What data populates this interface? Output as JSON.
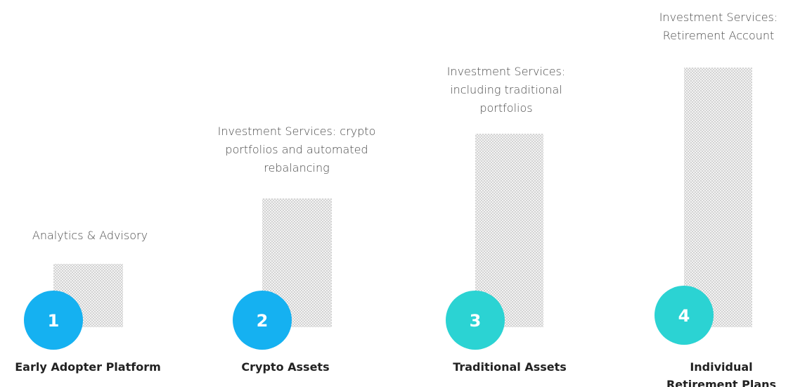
{
  "steps": [
    {
      "number": "1",
      "description": [
        "Analytics & Advisory"
      ],
      "label": [
        "Early Adopter Platform"
      ]
    },
    {
      "number": "2",
      "description": [
        "Investment Services: crypto",
        "portfolios and automated",
        "rebalancing"
      ],
      "label": [
        "Crypto Assets"
      ]
    },
    {
      "number": "3",
      "description": [
        "Investment Services:",
        "including traditional",
        "portfolios"
      ],
      "label": [
        "Traditional Assets"
      ]
    },
    {
      "number": "4",
      "description": [
        "Investment Services:",
        "Retirement Account"
      ],
      "label": [
        "Individual",
        "Retirement Plans"
      ]
    }
  ]
}
